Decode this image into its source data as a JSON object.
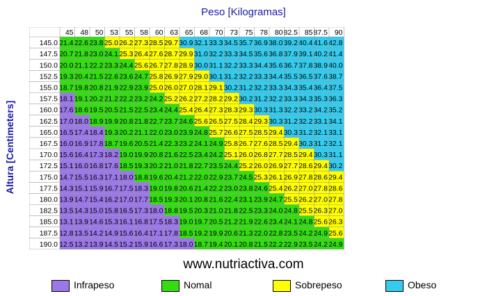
{
  "chart_data": {
    "type": "heatmap",
    "title": "Peso [Kilogramas]",
    "xlabel": "Peso [Kilogramas]",
    "ylabel": "Altura [Centimeters]",
    "x": [
      "45",
      "48",
      "50",
      "53",
      "55",
      "58",
      "60",
      "63",
      "65",
      "68",
      "70",
      "73",
      "75",
      "78",
      "80",
      "82.5",
      "85",
      "87.5",
      "90"
    ],
    "y": [
      "145.0",
      "147.5",
      "150.0",
      "152.5",
      "155.0",
      "157.5",
      "160.0",
      "162.5",
      "165.0",
      "167.5",
      "170.0",
      "172.5",
      "175.0",
      "177.5",
      "180.0",
      "182.5",
      "185.0",
      "187.5",
      "190.0"
    ],
    "values": [
      [
        21.4,
        22.6,
        23.8,
        25.0,
        26.2,
        27.3,
        28.5,
        29.7,
        30.9,
        32.1,
        33.3,
        34.5,
        35.7,
        36.9,
        38.0,
        39.2,
        40.4,
        41.6,
        42.8
      ],
      [
        20.7,
        21.8,
        23.0,
        24.1,
        25.3,
        26.4,
        27.6,
        28.7,
        29.9,
        31.0,
        32.2,
        33.3,
        34.5,
        35.6,
        36.8,
        37.9,
        39.1,
        40.2,
        41.4
      ],
      [
        20.0,
        21.1,
        22.2,
        23.3,
        24.4,
        25.6,
        26.7,
        27.8,
        28.9,
        30.0,
        31.1,
        32.2,
        33.3,
        34.4,
        35.6,
        36.7,
        37.8,
        38.9,
        40.0
      ],
      [
        19.3,
        20.4,
        21.5,
        22.6,
        23.6,
        24.7,
        25.8,
        26.9,
        27.9,
        29.0,
        30.1,
        31.2,
        32.2,
        33.3,
        34.4,
        35.5,
        36.5,
        37.6,
        38.7
      ],
      [
        18.7,
        19.8,
        20.8,
        21.9,
        22.9,
        23.9,
        25.0,
        26.0,
        27.0,
        28.1,
        29.1,
        30.2,
        31.2,
        32.2,
        33.3,
        34.3,
        35.4,
        36.4,
        37.5
      ],
      [
        18.1,
        19.1,
        20.2,
        21.2,
        22.2,
        23.2,
        24.2,
        25.2,
        26.2,
        27.2,
        28.2,
        29.2,
        30.2,
        31.2,
        32.2,
        33.3,
        34.3,
        35.3,
        36.3
      ],
      [
        17.6,
        18.6,
        19.5,
        20.5,
        21.5,
        22.5,
        23.4,
        24.4,
        25.4,
        26.4,
        27.3,
        28.3,
        29.3,
        30.3,
        31.3,
        32.2,
        33.2,
        34.2,
        35.2
      ],
      [
        17.0,
        18.0,
        18.9,
        19.9,
        20.8,
        21.8,
        22.7,
        23.7,
        24.6,
        25.6,
        26.5,
        27.5,
        28.4,
        29.3,
        30.3,
        31.2,
        32.2,
        33.1,
        34.1
      ],
      [
        16.5,
        17.4,
        18.4,
        19.3,
        20.2,
        21.1,
        22.0,
        23.0,
        23.9,
        24.8,
        25.7,
        26.6,
        27.5,
        28.5,
        29.4,
        30.3,
        31.2,
        32.1,
        33.1
      ],
      [
        16.0,
        16.9,
        17.8,
        18.7,
        19.6,
        20.5,
        21.4,
        22.3,
        23.2,
        24.1,
        24.9,
        25.8,
        26.7,
        27.6,
        28.5,
        29.4,
        30.3,
        31.2,
        32.1
      ],
      [
        15.6,
        16.4,
        17.3,
        18.2,
        19.0,
        19.9,
        20.8,
        21.6,
        22.5,
        23.4,
        24.2,
        25.1,
        26.0,
        26.8,
        27.7,
        28.5,
        29.4,
        30.3,
        31.1
      ],
      [
        15.1,
        16.0,
        16.8,
        17.6,
        18.5,
        19.3,
        20.2,
        21.0,
        21.8,
        22.7,
        23.5,
        24.4,
        25.2,
        26.0,
        26.9,
        27.7,
        28.6,
        29.4,
        30.2
      ],
      [
        14.7,
        15.5,
        16.3,
        17.1,
        18.0,
        18.8,
        19.6,
        20.4,
        21.2,
        22.0,
        22.9,
        23.7,
        24.5,
        25.3,
        26.1,
        26.9,
        27.8,
        28.6,
        29.4
      ],
      [
        14.3,
        15.1,
        15.9,
        16.7,
        17.5,
        18.3,
        19.0,
        19.8,
        20.6,
        21.4,
        22.2,
        23.0,
        23.8,
        24.6,
        25.4,
        26.2,
        27.0,
        27.8,
        28.6
      ],
      [
        13.9,
        14.7,
        15.4,
        16.2,
        17.0,
        17.7,
        18.5,
        19.3,
        20.1,
        20.8,
        21.6,
        22.4,
        23.1,
        23.9,
        24.7,
        25.5,
        26.2,
        27.0,
        27.8
      ],
      [
        13.5,
        14.3,
        15.0,
        15.8,
        16.5,
        17.3,
        18.0,
        18.8,
        19.5,
        20.3,
        21.0,
        21.8,
        22.5,
        23.3,
        24.0,
        24.8,
        25.5,
        26.3,
        27.0
      ],
      [
        13.1,
        13.9,
        14.6,
        15.3,
        16.1,
        16.8,
        17.5,
        18.3,
        19.0,
        19.7,
        20.5,
        21.2,
        21.9,
        22.6,
        23.4,
        24.1,
        24.8,
        25.6,
        26.3
      ],
      [
        12.8,
        13.5,
        14.2,
        14.9,
        15.6,
        16.4,
        17.1,
        17.8,
        18.5,
        19.2,
        19.9,
        20.6,
        21.3,
        22.0,
        22.8,
        23.5,
        24.2,
        24.9,
        25.6
      ],
      [
        12.5,
        13.2,
        13.9,
        14.5,
        15.2,
        15.9,
        16.6,
        17.3,
        18.0,
        18.7,
        19.4,
        20.1,
        20.8,
        21.5,
        22.2,
        22.9,
        23.5,
        24.2,
        24.9
      ]
    ],
    "categories_legend": [
      {
        "name": "Infrapeso",
        "color": "#9b77e8",
        "range": [
          0,
          18.5
        ]
      },
      {
        "name": "Nomal",
        "color": "#33dd11",
        "range": [
          18.5,
          25
        ]
      },
      {
        "name": "Sobrepeso",
        "color": "#ffff00",
        "range": [
          25,
          30
        ]
      },
      {
        "name": "Obeso",
        "color": "#33ccee",
        "range": [
          30,
          100
        ]
      }
    ],
    "legend_position": "bottom",
    "grid": true
  },
  "footer": {
    "website": "www.nutriactiva.com"
  }
}
